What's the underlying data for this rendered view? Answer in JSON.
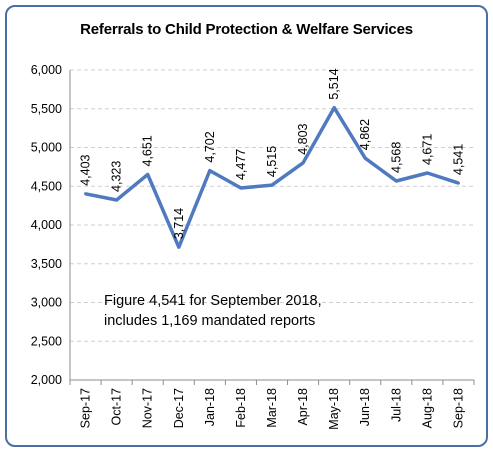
{
  "chart_data": {
    "type": "line",
    "title": "Referrals to Child Protection & Welfare Services",
    "xlabel": "",
    "ylabel": "",
    "ylim": [
      2000,
      6000
    ],
    "yticks": [
      2000,
      2500,
      3000,
      3500,
      4000,
      4500,
      5000,
      5500,
      6000
    ],
    "ytick_labels": [
      "2,000",
      "2,500",
      "3,000",
      "3,500",
      "4,000",
      "4,500",
      "5,000",
      "5,500",
      "6,000"
    ],
    "categories": [
      "Sep-17",
      "Oct-17",
      "Nov-17",
      "Dec-17",
      "Jan-18",
      "Feb-18",
      "Mar-18",
      "Apr-18",
      "May-18",
      "Jun-18",
      "Jul-18",
      "Aug-18",
      "Sep-18"
    ],
    "values": [
      4403,
      4323,
      4651,
      3714,
      4702,
      4477,
      4515,
      4803,
      5514,
      4862,
      4568,
      4671,
      4541
    ],
    "data_labels": [
      "4,403",
      "4,323",
      "4,651",
      "3,714",
      "4,702",
      "4,477",
      "4,515",
      "4,803",
      "5,514",
      "4,862",
      "4,568",
      "4,671",
      "4,541"
    ],
    "grid": true,
    "legend": "none",
    "line_color": "#4f7ac0",
    "annotation": [
      "Figure 4,541 for September  2018,",
      "includes 1,169 mandated reports"
    ]
  }
}
